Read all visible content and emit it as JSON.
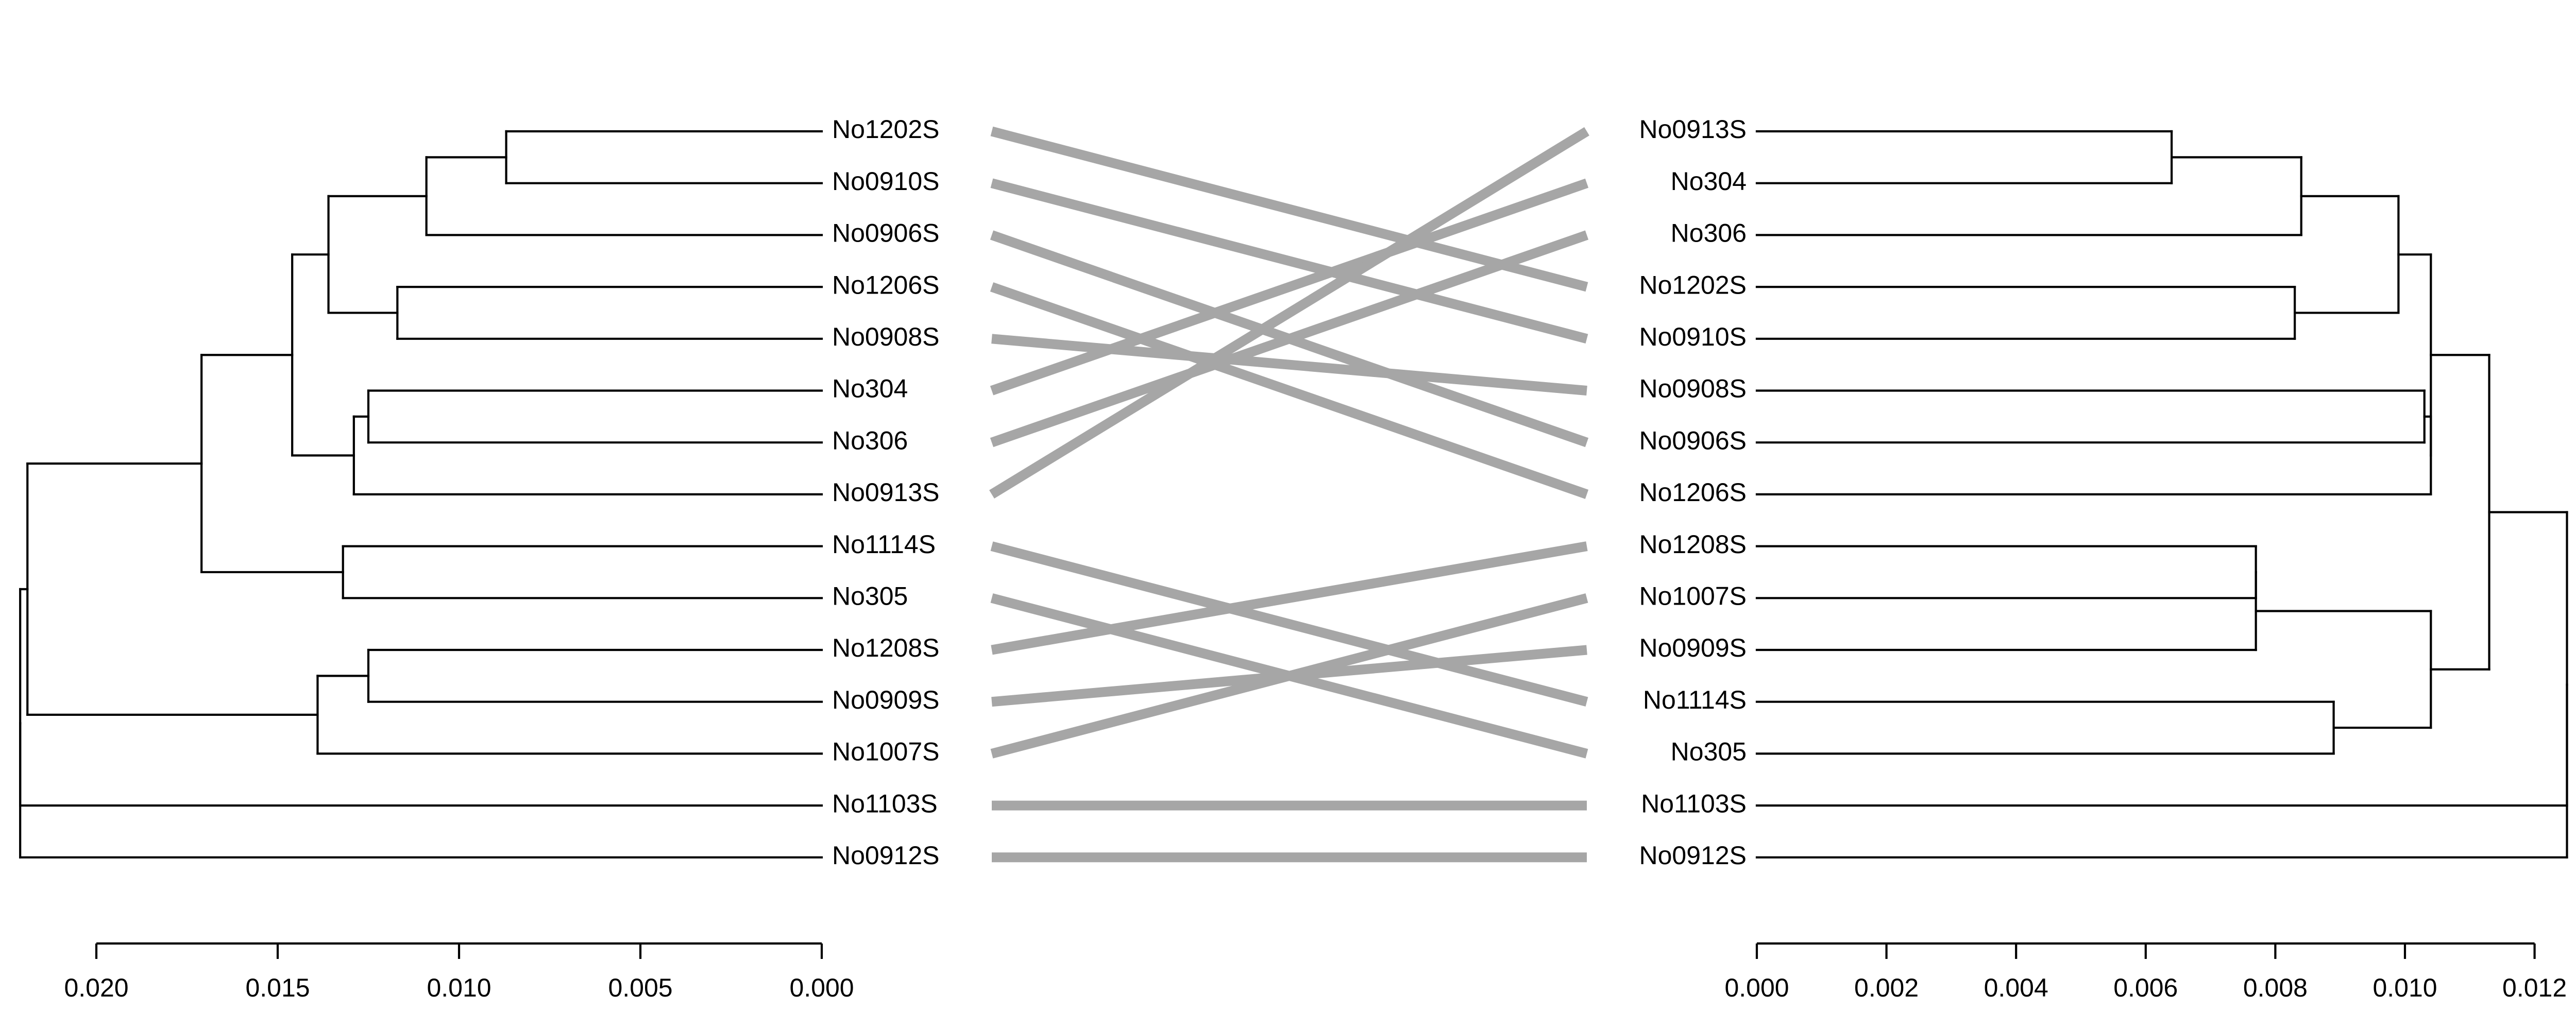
{
  "chart_data": {
    "type": "tanglegram",
    "title": "",
    "connector_color": "#a6a6a6",
    "line_color": "#000000",
    "left_tree": {
      "axis_ticks": [
        "0.020",
        "0.015",
        "0.010",
        "0.005",
        "0.000"
      ],
      "axis_tick_values": [
        0.02,
        0.015,
        0.01,
        0.005,
        0.0
      ],
      "tips": [
        {
          "name": "No1202S",
          "height": 0.0
        },
        {
          "name": "No0910S",
          "height": 0.0
        },
        {
          "name": "No0906S",
          "height": 0.0
        },
        {
          "name": "No1206S",
          "height": 0.0
        },
        {
          "name": "No0908S",
          "height": 0.0
        },
        {
          "name": "No304",
          "height": 0.0
        },
        {
          "name": "No306",
          "height": 0.0
        },
        {
          "name": "No0913S",
          "height": 0.0
        },
        {
          "name": "No1114S",
          "height": 0.0
        },
        {
          "name": "No305",
          "height": 0.0
        },
        {
          "name": "No1208S",
          "height": 0.0
        },
        {
          "name": "No0909S",
          "height": 0.0
        },
        {
          "name": "No1007S",
          "height": 0.0
        },
        {
          "name": "No1103S",
          "height": 0.0
        },
        {
          "name": "No0912S",
          "height": 0.0
        }
      ],
      "merges": [
        {
          "left": "No1202S",
          "right": "No0910S",
          "height": 0.0087
        },
        {
          "left": "No1202S",
          "right": "No0906S",
          "height": 0.0109
        },
        {
          "left": "No1206S",
          "right": "No0908S",
          "height": 0.0117
        },
        {
          "left": "No1202S",
          "right": "No1206S",
          "height": 0.0136
        },
        {
          "left": "No304",
          "right": "No306",
          "height": 0.0125
        },
        {
          "left": "No304",
          "right": "No0913S",
          "height": 0.0129
        },
        {
          "left": "No1202S",
          "right": "No304",
          "height": 0.0146
        },
        {
          "left": "No1114S",
          "right": "No305",
          "height": 0.0132
        },
        {
          "left": "No1202S",
          "right": "No1114S",
          "height": 0.0171
        },
        {
          "left": "No1208S",
          "right": "No0909S",
          "height": 0.0125
        },
        {
          "left": "No1208S",
          "right": "No1007S",
          "height": 0.0139
        },
        {
          "left": "No1202S",
          "right": "No1208S",
          "height": 0.0219
        },
        {
          "left": "No1202S",
          "right": "No0912S",
          "height": 0.0221
        },
        {
          "left": "No1202S",
          "right": "No1103S",
          "height": 0.0221
        }
      ]
    },
    "right_tree": {
      "axis_ticks": [
        "0.000",
        "0.002",
        "0.004",
        "0.006",
        "0.008",
        "0.010",
        "0.012"
      ],
      "axis_tick_values": [
        0.0,
        0.002,
        0.004,
        0.006,
        0.008,
        0.01,
        0.012
      ],
      "tips": [
        {
          "name": "No0913S",
          "height": 0.0
        },
        {
          "name": "No304",
          "height": 0.0
        },
        {
          "name": "No306",
          "height": 0.0
        },
        {
          "name": "No1202S",
          "height": 0.0
        },
        {
          "name": "No0910S",
          "height": 0.0
        },
        {
          "name": "No0908S",
          "height": 0.0
        },
        {
          "name": "No0906S",
          "height": 0.0
        },
        {
          "name": "No1206S",
          "height": 0.0
        },
        {
          "name": "No1208S",
          "height": 0.0
        },
        {
          "name": "No1007S",
          "height": 0.0
        },
        {
          "name": "No0909S",
          "height": 0.0
        },
        {
          "name": "No1114S",
          "height": 0.0
        },
        {
          "name": "No305",
          "height": 0.0
        },
        {
          "name": "No1103S",
          "height": 0.0
        },
        {
          "name": "No0912S",
          "height": 0.0
        }
      ],
      "merges": [
        {
          "left": "No0913S",
          "right": "No304",
          "height": 0.0064
        },
        {
          "left": "No0913S",
          "right": "No306",
          "height": 0.0084
        },
        {
          "left": "No1202S",
          "right": "No0910S",
          "height": 0.0083
        },
        {
          "left": "No0913S",
          "right": "No1202S",
          "height": 0.0099
        },
        {
          "left": "No0908S",
          "right": "No0906S",
          "height": 0.0103
        },
        {
          "left": "No0908S",
          "right": "No1206S",
          "height": 0.0104
        },
        {
          "left": "No0913S",
          "right": "No0908S",
          "height": 0.0104
        },
        {
          "left": "No1208S",
          "right": "No1007S",
          "height": 0.0077
        },
        {
          "left": "No1208S",
          "right": "No0909S",
          "height": 0.0077
        },
        {
          "left": "No1114S",
          "right": "No305",
          "height": 0.0089
        },
        {
          "left": "No1208S",
          "right": "No1114S",
          "height": 0.0104
        },
        {
          "left": "No0913S",
          "right": "No1208S",
          "height": 0.0113
        },
        {
          "left": "No0913S",
          "right": "No0912S",
          "height": 0.0125
        },
        {
          "left": "No0913S",
          "right": "No1103S",
          "height": 0.0125
        }
      ]
    },
    "connections": [
      {
        "from": "No1202S",
        "to": "No1202S"
      },
      {
        "from": "No0910S",
        "to": "No0910S"
      },
      {
        "from": "No0906S",
        "to": "No0906S"
      },
      {
        "from": "No1206S",
        "to": "No1206S"
      },
      {
        "from": "No0908S",
        "to": "No0908S"
      },
      {
        "from": "No304",
        "to": "No304"
      },
      {
        "from": "No306",
        "to": "No306"
      },
      {
        "from": "No0913S",
        "to": "No0913S"
      },
      {
        "from": "No1114S",
        "to": "No1114S"
      },
      {
        "from": "No305",
        "to": "No305"
      },
      {
        "from": "No1208S",
        "to": "No1208S"
      },
      {
        "from": "No0909S",
        "to": "No0909S"
      },
      {
        "from": "No1007S",
        "to": "No1007S"
      },
      {
        "from": "No1103S",
        "to": "No1103S"
      },
      {
        "from": "No0912S",
        "to": "No0912S"
      }
    ]
  }
}
